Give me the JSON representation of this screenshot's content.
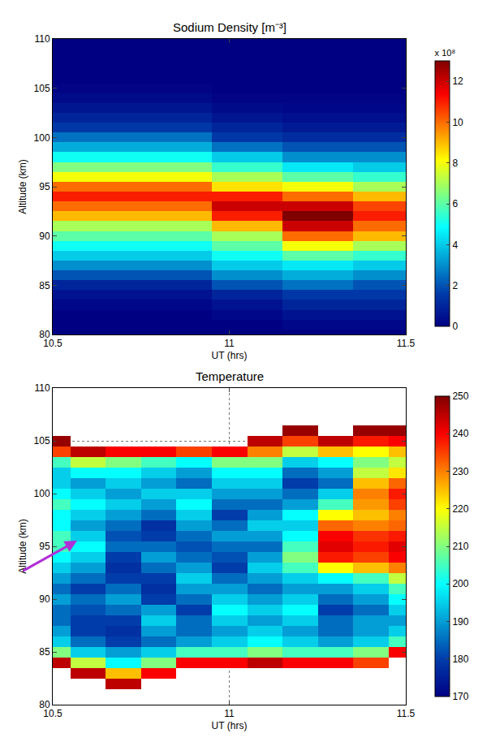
{
  "chart_data": [
    {
      "type": "heatmap",
      "title": "Sodium Density [m⁻³]",
      "xlabel": "UT (hrs)",
      "ylabel": "Altitude (km)",
      "x": [
        10.5,
        10.6,
        10.7,
        10.8,
        10.9,
        11.0,
        11.1,
        11.2,
        11.3,
        11.4,
        11.5
      ],
      "y": [
        80,
        81,
        82,
        83,
        84,
        85,
        86,
        87,
        88,
        89,
        90,
        91,
        92,
        93,
        94,
        95,
        96,
        97,
        98,
        99,
        100,
        101,
        102,
        103,
        104,
        105,
        106,
        107,
        108,
        109,
        110
      ],
      "values": [
        [
          0,
          0,
          0,
          0,
          0,
          0,
          0,
          0,
          0,
          0,
          0
        ],
        [
          0,
          0,
          0,
          0,
          0,
          0,
          0,
          0.2,
          0.2,
          0.2,
          0.2
        ],
        [
          0,
          0,
          0,
          0,
          0,
          0.2,
          0.2,
          0.5,
          0.5,
          0.5,
          0.5
        ],
        [
          0.2,
          0.2,
          0.2,
          0.2,
          0.2,
          0.5,
          0.5,
          1,
          1,
          1,
          1
        ],
        [
          0.5,
          0.5,
          0.5,
          0.5,
          0.5,
          1,
          1,
          1.5,
          1.5,
          1.5,
          1.5
        ],
        [
          1,
          1,
          1,
          1,
          1,
          2,
          2,
          2.5,
          2.5,
          2,
          2
        ],
        [
          2,
          2,
          2,
          2,
          2,
          3,
          3,
          3.5,
          3.5,
          3,
          3
        ],
        [
          3,
          3,
          3,
          3,
          3,
          4,
          4,
          4.5,
          4.5,
          4,
          4
        ],
        [
          4,
          4,
          4,
          4,
          4,
          5,
          5,
          6,
          6,
          5.5,
          5.5
        ],
        [
          5,
          5,
          5,
          5,
          5,
          6,
          6,
          8,
          8,
          7,
          7
        ],
        [
          6,
          6,
          6,
          6,
          6,
          7,
          7,
          10,
          10,
          9,
          9
        ],
        [
          7,
          7,
          7,
          7,
          7,
          9,
          9,
          12,
          12,
          10,
          10
        ],
        [
          9,
          9,
          9,
          9,
          9,
          11,
          11,
          13,
          13,
          11,
          11
        ],
        [
          10,
          10,
          10,
          10,
          10,
          12,
          12,
          12,
          12,
          10.5,
          10.5
        ],
        [
          11,
          11,
          11,
          11,
          11,
          11,
          11,
          10,
          10,
          9,
          9
        ],
        [
          10,
          10,
          10,
          10,
          10,
          8.5,
          8.5,
          8,
          8,
          7,
          7
        ],
        [
          8,
          8,
          8,
          8,
          8,
          7,
          7,
          6,
          6,
          5.5,
          5.5
        ],
        [
          6.5,
          6.5,
          6.5,
          6.5,
          6.5,
          5.5,
          5.5,
          4.5,
          4.5,
          4,
          4
        ],
        [
          5,
          5,
          5,
          5,
          5,
          4,
          4,
          3,
          3,
          3,
          3
        ],
        [
          3.5,
          3.5,
          3.5,
          3.5,
          3.5,
          2.5,
          2.5,
          2,
          2,
          2,
          2
        ],
        [
          2.5,
          2.5,
          2.5,
          2.5,
          2.5,
          1.5,
          1.5,
          1.2,
          1.2,
          1.2,
          1.2
        ],
        [
          1.5,
          1.5,
          1.5,
          1.5,
          1.5,
          1,
          1,
          0.7,
          0.7,
          0.7,
          0.7
        ],
        [
          1,
          1,
          1,
          1,
          1,
          0.6,
          0.6,
          0.4,
          0.4,
          0.4,
          0.4
        ],
        [
          0.6,
          0.6,
          0.6,
          0.6,
          0.6,
          0.3,
          0.3,
          0.2,
          0.2,
          0.2,
          0.2
        ],
        [
          0.3,
          0.3,
          0.3,
          0.3,
          0.3,
          0.1,
          0.1,
          0.1,
          0.1,
          0.1,
          0.1
        ],
        [
          0.1,
          0.1,
          0.1,
          0.1,
          0.1,
          0,
          0,
          0,
          0,
          0,
          0
        ],
        [
          0,
          0,
          0,
          0,
          0,
          0,
          0,
          0,
          0,
          0,
          0
        ],
        [
          0,
          0,
          0,
          0,
          0,
          0,
          0,
          0,
          0,
          0,
          0
        ],
        [
          0,
          0,
          0,
          0,
          0,
          0,
          0,
          0,
          0,
          0,
          0
        ],
        [
          0,
          0,
          0,
          0,
          0,
          0,
          0,
          0,
          0,
          0,
          0
        ],
        [
          0,
          0,
          0,
          0,
          0,
          0,
          0,
          0,
          0,
          0,
          0
        ]
      ],
      "xlim": [
        10.5,
        11.5
      ],
      "ylim": [
        80,
        110
      ],
      "xticks": [
        10.5,
        11,
        11.5
      ],
      "yticks": [
        80,
        85,
        90,
        95,
        100,
        105,
        110
      ],
      "grid": false,
      "color_range": [
        0,
        13
      ],
      "color_ticks": [
        0,
        2,
        4,
        6,
        8,
        10,
        12
      ],
      "colorbar_label": "x 10⁸"
    },
    {
      "type": "heatmap",
      "title": "Temperature",
      "xlabel": "UT (hrs)",
      "ylabel": "Altitude (km)",
      "x": [
        10.5,
        10.6,
        10.7,
        10.8,
        10.9,
        11.0,
        11.1,
        11.2,
        11.3,
        11.4,
        11.5
      ],
      "y": [
        80,
        81,
        82,
        83,
        84,
        85,
        86,
        87,
        88,
        89,
        90,
        91,
        92,
        93,
        94,
        95,
        96,
        97,
        98,
        99,
        100,
        101,
        102,
        103,
        104,
        105,
        106,
        107,
        108,
        109,
        110
      ],
      "values": [
        [
          null,
          null,
          null,
          null,
          null,
          null,
          null,
          null,
          null,
          null,
          null
        ],
        [
          null,
          null,
          null,
          null,
          null,
          null,
          null,
          null,
          null,
          null,
          null
        ],
        [
          null,
          null,
          245,
          null,
          null,
          null,
          null,
          null,
          null,
          null,
          null
        ],
        [
          null,
          245,
          225,
          240,
          null,
          null,
          null,
          null,
          null,
          null,
          null
        ],
        [
          245,
          215,
          200,
          210,
          240,
          240,
          245,
          240,
          240,
          235,
          null
        ],
        [
          210,
          195,
          190,
          195,
          205,
          205,
          210,
          205,
          205,
          210,
          240
        ],
        [
          195,
          185,
          180,
          185,
          190,
          195,
          200,
          195,
          190,
          195,
          205
        ],
        [
          190,
          180,
          178,
          190,
          185,
          190,
          195,
          190,
          185,
          190,
          195
        ],
        [
          185,
          180,
          180,
          195,
          185,
          195,
          190,
          195,
          185,
          190,
          190
        ],
        [
          185,
          182,
          185,
          190,
          180,
          200,
          195,
          200,
          180,
          185,
          195
        ],
        [
          190,
          185,
          190,
          180,
          185,
          195,
          190,
          195,
          185,
          190,
          200
        ],
        [
          185,
          180,
          185,
          178,
          190,
          190,
          185,
          190,
          190,
          195,
          205
        ],
        [
          190,
          185,
          180,
          180,
          195,
          185,
          190,
          195,
          200,
          205,
          215
        ],
        [
          195,
          190,
          178,
          185,
          190,
          180,
          195,
          205,
          220,
          225,
          230
        ],
        [
          200,
          195,
          180,
          190,
          185,
          182,
          190,
          210,
          238,
          235,
          240
        ],
        [
          205,
          200,
          185,
          185,
          182,
          185,
          185,
          205,
          242,
          238,
          242
        ],
        [
          205,
          195,
          182,
          180,
          185,
          190,
          190,
          200,
          240,
          236,
          238
        ],
        [
          200,
          190,
          185,
          178,
          190,
          185,
          195,
          195,
          232,
          230,
          232
        ],
        [
          200,
          195,
          190,
          185,
          195,
          180,
          190,
          200,
          220,
          225,
          230
        ],
        [
          205,
          200,
          195,
          190,
          200,
          185,
          185,
          190,
          205,
          228,
          235
        ],
        [
          200,
          195,
          190,
          195,
          195,
          190,
          190,
          185,
          195,
          230,
          238
        ],
        [
          195,
          190,
          195,
          190,
          185,
          195,
          195,
          180,
          185,
          225,
          232
        ],
        [
          195,
          200,
          200,
          195,
          190,
          200,
          200,
          185,
          190,
          215,
          222
        ],
        [
          205,
          215,
          210,
          205,
          200,
          210,
          210,
          195,
          200,
          210,
          215
        ],
        [
          235,
          245,
          240,
          240,
          235,
          240,
          230,
          215,
          225,
          220,
          225
        ],
        [
          248,
          null,
          null,
          null,
          null,
          null,
          245,
          235,
          245,
          238,
          240
        ],
        [
          null,
          null,
          null,
          null,
          null,
          null,
          null,
          248,
          null,
          248,
          248
        ],
        [
          null,
          null,
          null,
          null,
          null,
          null,
          null,
          null,
          null,
          null,
          null
        ],
        [
          null,
          null,
          null,
          null,
          null,
          null,
          null,
          null,
          null,
          null,
          null
        ],
        [
          null,
          null,
          null,
          null,
          null,
          null,
          null,
          null,
          null,
          null,
          null
        ],
        [
          null,
          null,
          null,
          null,
          null,
          null,
          null,
          null,
          null,
          null,
          null
        ]
      ],
      "xlim": [
        10.5,
        11.5
      ],
      "ylim": [
        80,
        110
      ],
      "xticks": [
        10.5,
        11,
        11.5
      ],
      "yticks": [
        80,
        85,
        90,
        95,
        100,
        105,
        110
      ],
      "grid": true,
      "color_range": [
        170,
        250
      ],
      "color_ticks": [
        170,
        180,
        190,
        200,
        210,
        220,
        230,
        240,
        250
      ]
    }
  ]
}
